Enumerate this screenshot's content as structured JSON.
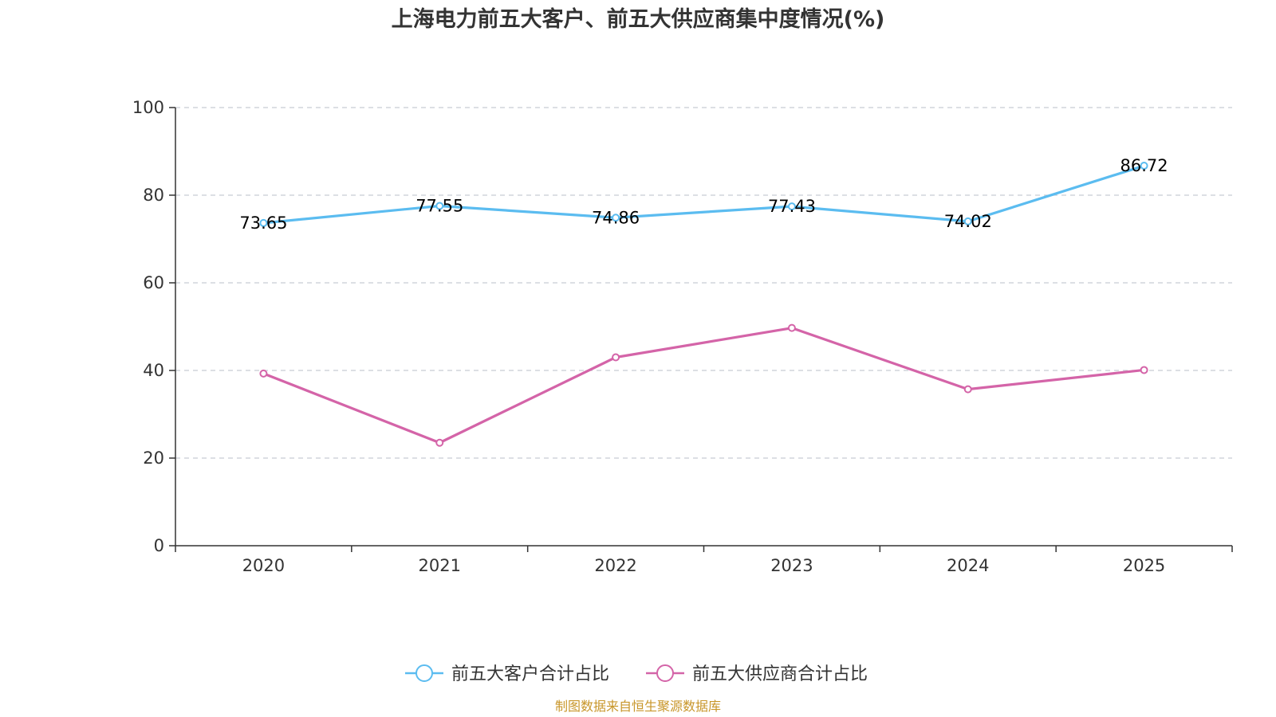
{
  "chart_data": {
    "type": "line",
    "title": "上海电力前五大客户、前五大供应商集中度情况(%)",
    "categories": [
      "2020",
      "2021",
      "2022",
      "2023",
      "2024",
      "2025"
    ],
    "ylim": [
      0,
      100
    ],
    "yticks": [
      "0",
      "20",
      "40",
      "60",
      "80",
      "100"
    ],
    "grid": true,
    "legend_position": "bottom",
    "series": [
      {
        "name": "前五大客户合计占比",
        "color": "#5bbcf0",
        "values": [
          73.65,
          77.55,
          74.86,
          77.43,
          74.02,
          86.72
        ],
        "labels": [
          "73.65",
          "77.55",
          "74.86",
          "77.43",
          "74.02",
          "86.72"
        ],
        "show_labels": true
      },
      {
        "name": "前五大供应商合计占比",
        "color": "#d464a8",
        "values": [
          39.3,
          23.5,
          43.0,
          49.7,
          35.7,
          40.1
        ],
        "show_labels": false
      }
    ],
    "source": "制图数据来自恒生聚源数据库",
    "source_color": "#c8962a"
  }
}
